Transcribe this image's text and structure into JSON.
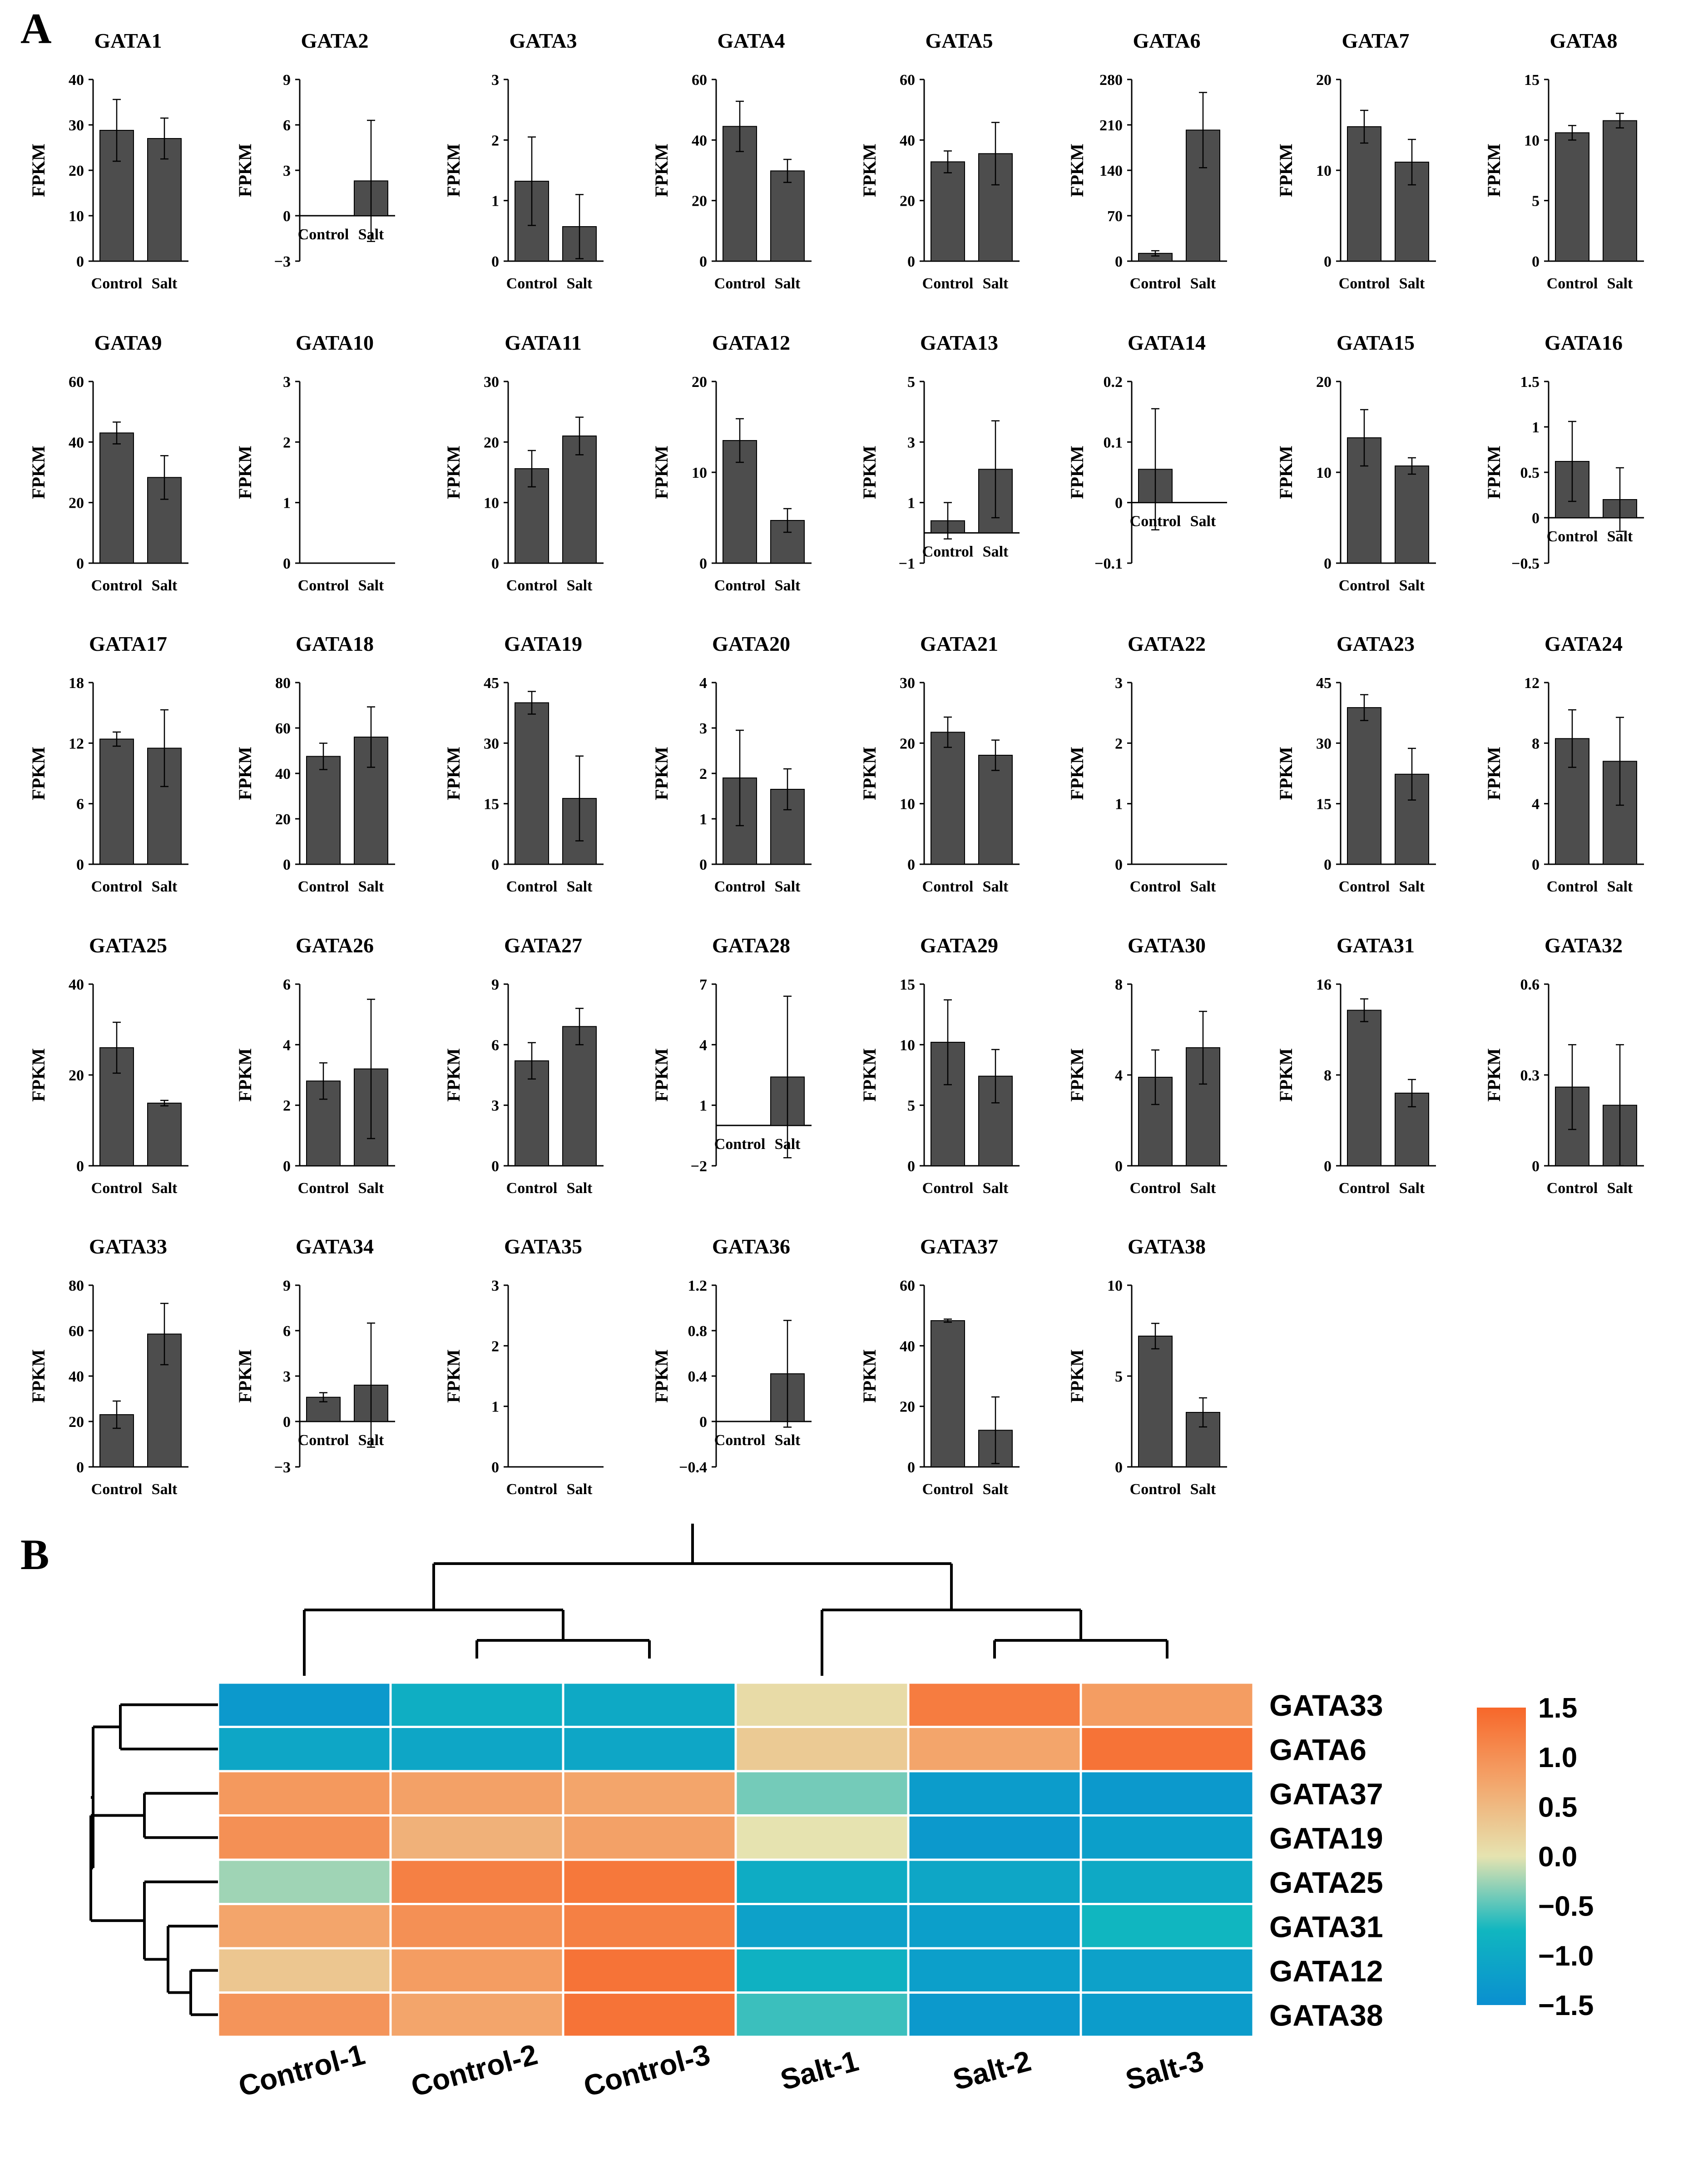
{
  "colors": {
    "bar": "#4d4d4d",
    "axis": "#000000",
    "heat_low": "#0a8fd0",
    "heat_lowmid": "#10b6c0",
    "heat_mid": "#e6e3b0",
    "heat_highmid": "#f3a56b",
    "heat_high": "#f7672a"
  },
  "panels": {
    "a_label": "A",
    "b_label": "B"
  },
  "chart_data": [
    {
      "type": "bar",
      "panel": "A",
      "ylabel": "FPKM",
      "categories": [
        "Control",
        "Salt"
      ],
      "genes": [
        {
          "title": "GATA1",
          "values": [
            28.8,
            27.0
          ],
          "errors": [
            6.8,
            4.5
          ],
          "ylim": [
            0,
            40
          ],
          "ticks": [
            0,
            10,
            20,
            30,
            40
          ]
        },
        {
          "title": "GATA2",
          "values": [
            0,
            2.3
          ],
          "errors": [
            0,
            4.0
          ],
          "ylim": [
            -3,
            9
          ],
          "ticks": [
            -3,
            0,
            3,
            6,
            9
          ]
        },
        {
          "title": "GATA3",
          "values": [
            1.32,
            0.57
          ],
          "errors": [
            0.73,
            0.53
          ],
          "ylim": [
            0,
            3
          ],
          "ticks": [
            0,
            1,
            2,
            3
          ]
        },
        {
          "title": "GATA4",
          "values": [
            44.5,
            29.8
          ],
          "errors": [
            8.3,
            3.8
          ],
          "ylim": [
            0,
            60
          ],
          "ticks": [
            0,
            20,
            40,
            60
          ]
        },
        {
          "title": "GATA5",
          "values": [
            32.8,
            35.5
          ],
          "errors": [
            3.6,
            10.3
          ],
          "ylim": [
            0,
            60
          ],
          "ticks": [
            0,
            20,
            40,
            60
          ]
        },
        {
          "title": "GATA6",
          "values": [
            12,
            202
          ],
          "errors": [
            4,
            58
          ],
          "ylim": [
            0,
            280
          ],
          "ticks": [
            0,
            70,
            140,
            210,
            280
          ]
        },
        {
          "title": "GATA7",
          "values": [
            14.8,
            10.9
          ],
          "errors": [
            1.8,
            2.5
          ],
          "ylim": [
            0,
            20
          ],
          "ticks": [
            0,
            10,
            20
          ]
        },
        {
          "title": "GATA8",
          "values": [
            10.6,
            11.6
          ],
          "errors": [
            0.6,
            0.6
          ],
          "ylim": [
            0,
            15
          ],
          "ticks": [
            0,
            5,
            10,
            15
          ]
        },
        {
          "title": "GATA9",
          "values": [
            43.0,
            28.3
          ],
          "errors": [
            3.6,
            7.2
          ],
          "ylim": [
            0,
            60
          ],
          "ticks": [
            0,
            20,
            40,
            60
          ]
        },
        {
          "title": "GATA10",
          "values": [
            0,
            0
          ],
          "errors": [
            0,
            0
          ],
          "ylim": [
            0,
            3
          ],
          "ticks": [
            0,
            1,
            2,
            3
          ]
        },
        {
          "title": "GATA11",
          "values": [
            15.6,
            21.0
          ],
          "errors": [
            3.0,
            3.1
          ],
          "ylim": [
            0,
            30
          ],
          "ticks": [
            0,
            10,
            20,
            30
          ]
        },
        {
          "title": "GATA12",
          "values": [
            13.5,
            4.7
          ],
          "errors": [
            2.4,
            1.3
          ],
          "ylim": [
            0,
            20
          ],
          "ticks": [
            0,
            10,
            20
          ]
        },
        {
          "title": "GATA13",
          "values": [
            0.4,
            2.1
          ],
          "errors": [
            0.6,
            1.6
          ],
          "ylim": [
            -1,
            5
          ],
          "ticks": [
            -1,
            1,
            3,
            5
          ]
        },
        {
          "title": "GATA14",
          "values": [
            0.055,
            0
          ],
          "errors": [
            0.1,
            0
          ],
          "ylim": [
            -0.1,
            0.2
          ],
          "ticks": [
            -0.1,
            0,
            0.1,
            0.2
          ]
        },
        {
          "title": "GATA15",
          "values": [
            13.8,
            10.7
          ],
          "errors": [
            3.1,
            0.9
          ],
          "ylim": [
            0,
            20
          ],
          "ticks": [
            0,
            10,
            20
          ]
        },
        {
          "title": "GATA16",
          "values": [
            0.62,
            0.2
          ],
          "errors": [
            0.44,
            0.35
          ],
          "ylim": [
            -0.5,
            1.5
          ],
          "ticks": [
            -0.5,
            0,
            0.5,
            1,
            1.5
          ]
        },
        {
          "title": "GATA17",
          "values": [
            12.4,
            11.5
          ],
          "errors": [
            0.7,
            3.8
          ],
          "ylim": [
            0,
            18
          ],
          "ticks": [
            0,
            6,
            12,
            18
          ]
        },
        {
          "title": "GATA18",
          "values": [
            47.5,
            56.0
          ],
          "errors": [
            5.8,
            13.3
          ],
          "ylim": [
            0,
            80
          ],
          "ticks": [
            0,
            20,
            40,
            60,
            80
          ]
        },
        {
          "title": "GATA19",
          "values": [
            40.0,
            16.3
          ],
          "errors": [
            2.8,
            10.5
          ],
          "ylim": [
            0,
            45
          ],
          "ticks": [
            0,
            15,
            30,
            45
          ]
        },
        {
          "title": "GATA20",
          "values": [
            1.9,
            1.65
          ],
          "errors": [
            1.05,
            0.45
          ],
          "ylim": [
            0,
            4
          ],
          "ticks": [
            0,
            1,
            2,
            3,
            4
          ]
        },
        {
          "title": "GATA21",
          "values": [
            21.8,
            18.0
          ],
          "errors": [
            2.5,
            2.5
          ],
          "ylim": [
            0,
            30
          ],
          "ticks": [
            0,
            10,
            20,
            30
          ]
        },
        {
          "title": "GATA22",
          "values": [
            0,
            0
          ],
          "errors": [
            0,
            0
          ],
          "ylim": [
            0,
            3
          ],
          "ticks": [
            0,
            1,
            2,
            3
          ]
        },
        {
          "title": "GATA23",
          "values": [
            38.8,
            22.3
          ],
          "errors": [
            3.2,
            6.4
          ],
          "ylim": [
            0,
            45
          ],
          "ticks": [
            0,
            15,
            30,
            45
          ]
        },
        {
          "title": "GATA24",
          "values": [
            8.3,
            6.8
          ],
          "errors": [
            1.9,
            2.9
          ],
          "ylim": [
            0,
            12
          ],
          "ticks": [
            0,
            4,
            8,
            12
          ]
        },
        {
          "title": "GATA25",
          "values": [
            26.0,
            13.8
          ],
          "errors": [
            5.6,
            0.6
          ],
          "ylim": [
            0,
            40
          ],
          "ticks": [
            0,
            20,
            40
          ]
        },
        {
          "title": "GATA26",
          "values": [
            2.8,
            3.2
          ],
          "errors": [
            0.6,
            2.3
          ],
          "ylim": [
            0,
            6
          ],
          "ticks": [
            0,
            2,
            4,
            6
          ]
        },
        {
          "title": "GATA27",
          "values": [
            5.2,
            6.9
          ],
          "errors": [
            0.9,
            0.9
          ],
          "ylim": [
            0,
            9
          ],
          "ticks": [
            0,
            3,
            6,
            9
          ]
        },
        {
          "title": "GATA28",
          "values": [
            0,
            2.4
          ],
          "errors": [
            0,
            4.0
          ],
          "ylim": [
            -2,
            7
          ],
          "ticks": [
            -2,
            1,
            4,
            7
          ]
        },
        {
          "title": "GATA29",
          "values": [
            10.2,
            7.4
          ],
          "errors": [
            3.5,
            2.2
          ],
          "ylim": [
            0,
            15
          ],
          "ticks": [
            0,
            5,
            10,
            15
          ]
        },
        {
          "title": "GATA30",
          "values": [
            3.9,
            5.2
          ],
          "errors": [
            1.2,
            1.6
          ],
          "ylim": [
            0,
            8
          ],
          "ticks": [
            0,
            4,
            8
          ]
        },
        {
          "title": "GATA31",
          "values": [
            13.7,
            6.4
          ],
          "errors": [
            1.0,
            1.2
          ],
          "ylim": [
            0,
            16
          ],
          "ticks": [
            0,
            8,
            16
          ]
        },
        {
          "title": "GATA32",
          "values": [
            0.26,
            0.2
          ],
          "errors": [
            0.14,
            0.2
          ],
          "ylim": [
            0,
            0.6
          ],
          "ticks": [
            0,
            0.3,
            0.6
          ]
        },
        {
          "title": "GATA33",
          "values": [
            23.0,
            58.5
          ],
          "errors": [
            6.0,
            13.5
          ],
          "ylim": [
            0,
            80
          ],
          "ticks": [
            0,
            20,
            40,
            60,
            80
          ]
        },
        {
          "title": "GATA34",
          "values": [
            1.6,
            2.4
          ],
          "errors": [
            0.3,
            4.1
          ],
          "ylim": [
            -3,
            9
          ],
          "ticks": [
            -3,
            0,
            3,
            6,
            9
          ]
        },
        {
          "title": "GATA35",
          "values": [
            0,
            0
          ],
          "errors": [
            0,
            0
          ],
          "ylim": [
            0,
            3
          ],
          "ticks": [
            0,
            1,
            2,
            3
          ]
        },
        {
          "title": "GATA36",
          "values": [
            0,
            0.42
          ],
          "errors": [
            0,
            0.47
          ],
          "ylim": [
            -0.4,
            1.2
          ],
          "ticks": [
            -0.4,
            0,
            0.4,
            0.8,
            1.2
          ]
        },
        {
          "title": "GATA37",
          "values": [
            48.3,
            12.1
          ],
          "errors": [
            0.5,
            11.0
          ],
          "ylim": [
            0,
            60
          ],
          "ticks": [
            0,
            20,
            40,
            60
          ]
        },
        {
          "title": "GATA38",
          "values": [
            7.2,
            3.0
          ],
          "errors": [
            0.7,
            0.8
          ],
          "ylim": [
            0,
            10
          ],
          "ticks": [
            0,
            5,
            10
          ]
        }
      ]
    },
    {
      "type": "heatmap",
      "panel": "B",
      "columns": [
        "Control-1",
        "Control-2",
        "Control-3",
        "Salt-1",
        "Salt-2",
        "Salt-3"
      ],
      "rows": [
        "GATA33",
        "GATA6",
        "GATA37",
        "GATA19",
        "GATA25",
        "GATA31",
        "GATA12",
        "GATA38"
      ],
      "values": [
        [
          -1.3,
          -0.9,
          -1.0,
          0.1,
          1.25,
          0.85
        ],
        [
          -1.05,
          -1.05,
          -1.05,
          0.3,
          0.75,
          1.35
        ],
        [
          0.9,
          0.8,
          0.75,
          -0.4,
          -1.25,
          -1.3
        ],
        [
          1.0,
          0.6,
          0.8,
          0.0,
          -1.3,
          -1.2
        ],
        [
          -0.25,
          1.2,
          1.3,
          -0.95,
          -1.05,
          -1.0
        ],
        [
          0.75,
          1.0,
          1.2,
          -1.15,
          -1.2,
          -0.75
        ],
        [
          0.35,
          0.85,
          1.35,
          -0.85,
          -1.2,
          -1.15
        ],
        [
          0.95,
          0.75,
          1.35,
          -0.6,
          -1.3,
          -1.25
        ]
      ],
      "colorbar": {
        "range": [
          -1.5,
          1.5
        ],
        "tick_labels": [
          "1.5",
          "1.0",
          "0.5",
          "0.0",
          "−0.5",
          "−1.0",
          "−1.5"
        ]
      },
      "column_clusters": [
        [
          [
            "Control-1"
          ],
          [
            "Control-2",
            "Control-3"
          ]
        ],
        [
          [
            "Salt-1"
          ],
          [
            "Salt-2",
            "Salt-3"
          ]
        ]
      ],
      "row_clusters": [
        [
          [
            "GATA33",
            "GATA6"
          ]
        ],
        [
          [
            [
              "GATA37",
              "GATA19"
            ]
          ],
          [
            [
              "GATA25"
            ],
            [
              [
                "GATA31"
              ],
              [
                "GATA12",
                "GATA38"
              ]
            ]
          ]
        ]
      ]
    }
  ]
}
